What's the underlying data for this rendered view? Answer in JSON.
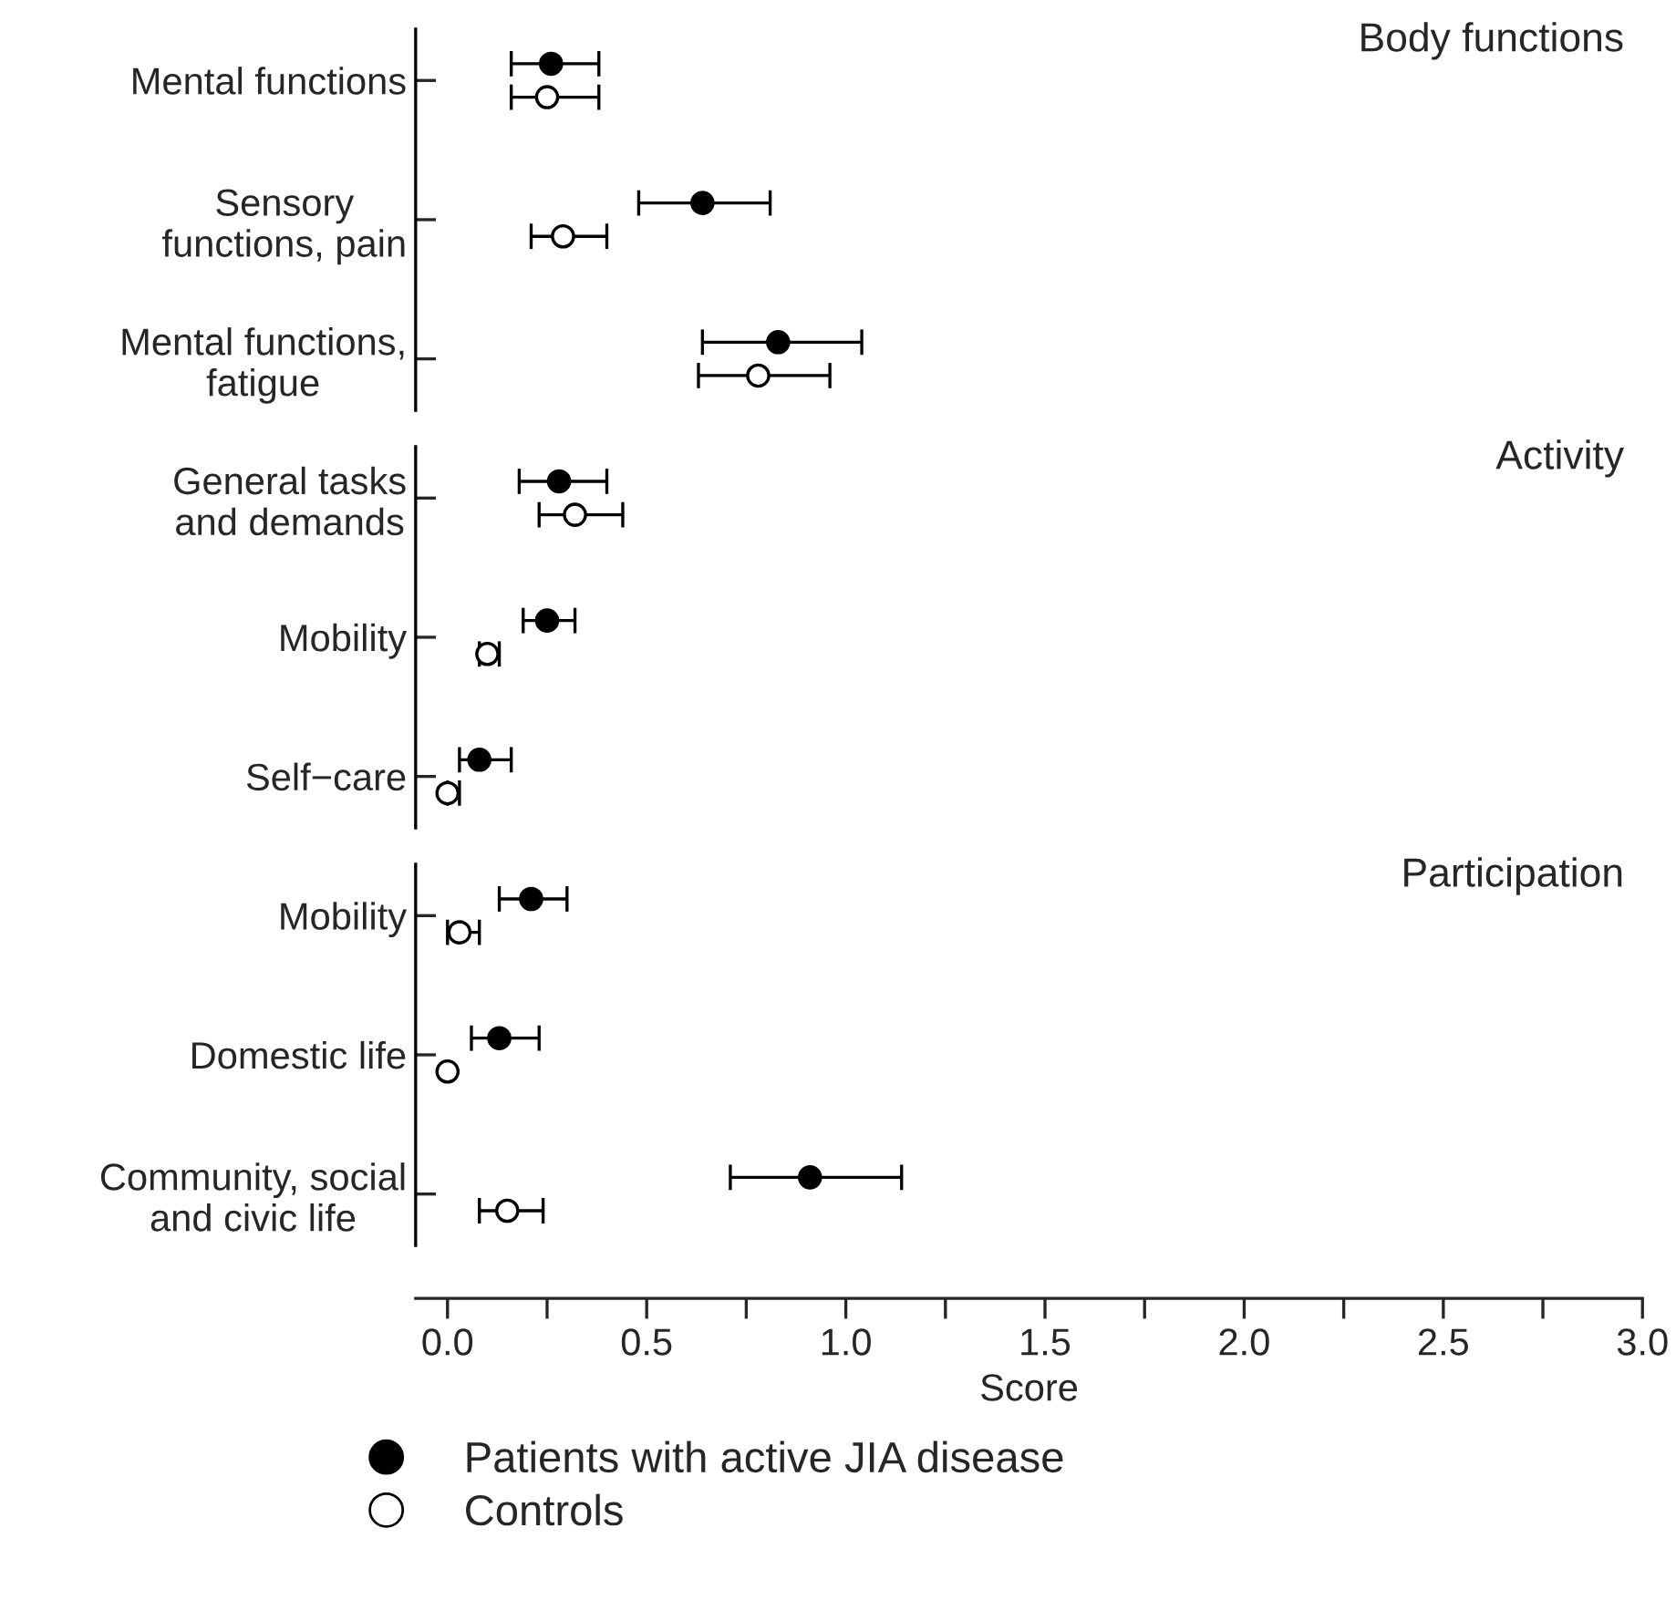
{
  "chart_data": {
    "type": "scatter",
    "categories": [
      "Mental functions",
      "Sensory\nfunctions, pain",
      "Mental functions,\nfatigue",
      "General tasks\nand demands",
      "Mobility",
      "Self−care",
      "Mobility",
      "Domestic life",
      "Community, social\nand civic life"
    ],
    "annotations": [
      "Body functions",
      "Activity",
      "Participation"
    ],
    "xlabel": "Score",
    "xlim": [
      -0.08,
      3.0
    ],
    "xticks": [
      {
        "value": 0,
        "label": "0.0"
      },
      {
        "value": 0.5,
        "label": "0.5"
      },
      {
        "value": 1,
        "label": "1.0"
      },
      {
        "value": 1.5,
        "label": "1.5"
      },
      {
        "value": 2,
        "label": "2.0"
      },
      {
        "value": 2.5,
        "label": "2.5"
      },
      {
        "value": 3,
        "label": "3.0"
      }
    ],
    "marker": "circle",
    "legend": "bottom",
    "orientation": "horizontal",
    "series": [
      {
        "name": "Patients with active JIA disease",
        "color": "#000000",
        "values": [
          0.26,
          0.64,
          0.83,
          0.28,
          0.25,
          0.08,
          0.21,
          0.13,
          0.91
        ],
        "errors": [
          [
            0.16,
            0.38
          ],
          [
            0.48,
            0.81
          ],
          [
            0.64,
            1.04
          ],
          [
            0.18,
            0.4
          ],
          [
            0.19,
            0.32
          ],
          [
            0.03,
            0.16
          ],
          [
            0.13,
            0.3
          ],
          [
            0.06,
            0.23
          ],
          [
            0.71,
            1.14
          ]
        ]
      },
      {
        "name": "Controls",
        "color": "#ffffff",
        "values": [
          0.25,
          0.29,
          0.78,
          0.32,
          0.1,
          0.0,
          0.03,
          0.0,
          0.15
        ],
        "errors": [
          [
            0.16,
            0.38
          ],
          [
            0.21,
            0.4
          ],
          [
            0.63,
            0.96
          ],
          [
            0.23,
            0.44
          ],
          [
            0.08,
            0.13
          ],
          [
            0.0,
            0.03
          ],
          [
            0.0,
            0.08
          ],
          null,
          [
            0.08,
            0.24
          ]
        ]
      }
    ]
  }
}
